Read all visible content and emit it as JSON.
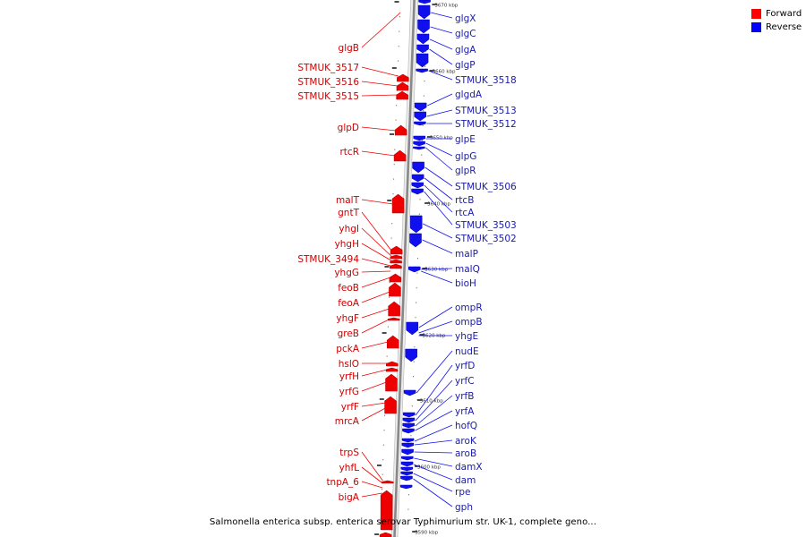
{
  "caption": "Salmonella enterica subsp. enterica serovar Typhimurium str. UK-1, complete geno...",
  "legend": [
    {
      "label": "Forward",
      "color": "#ff0000"
    },
    {
      "label": "Reverse",
      "color": "#0000ff"
    }
  ],
  "colors": {
    "forward_gene": "#ee0000",
    "forward_label": "#cc0000",
    "reverse_gene": "#1010ee",
    "reverse_label": "#1a1aa8",
    "backbone": "#888888"
  },
  "ruler": {
    "unit": "kbp",
    "ticks": [
      "3670 kbp",
      "3660 kbp",
      "3650 kbp",
      "3640 kbp",
      "3630 kbp",
      "3620 kbp",
      "3610 kbp",
      "3600 kbp",
      "3590 kbp"
    ]
  },
  "forward_genes": [
    "glgB",
    "STMUK_3517",
    "STMUK_3516",
    "STMUK_3515",
    "glpD",
    "rtcR",
    "malT",
    "gntT",
    "yhgI",
    "yhgH",
    "STMUK_3494",
    "yhgG",
    "feoB",
    "feoA",
    "yhgF",
    "greB",
    "pckA",
    "hslO",
    "yrfH",
    "yrfG",
    "yrfF",
    "mrcA",
    "trpS",
    "yhfL",
    "tnpA_6",
    "bigA"
  ],
  "reverse_genes": [
    "glgX",
    "glgC",
    "glgA",
    "glgP",
    "STMUK_3518",
    "glgdA",
    "STMUK_3513",
    "STMUK_3512",
    "glpE",
    "glpG",
    "glpR",
    "STMUK_3506",
    "rtcB",
    "rtcA",
    "STMUK_3503",
    "STMUK_3502",
    "malP",
    "malQ",
    "bioH",
    "ompR",
    "ompB",
    "yhgE",
    "nudE",
    "yrfD",
    "yrfC",
    "yrfB",
    "yrfA",
    "hofQ",
    "aroK",
    "aroB",
    "damX",
    "dam",
    "rpe",
    "gph"
  ]
}
